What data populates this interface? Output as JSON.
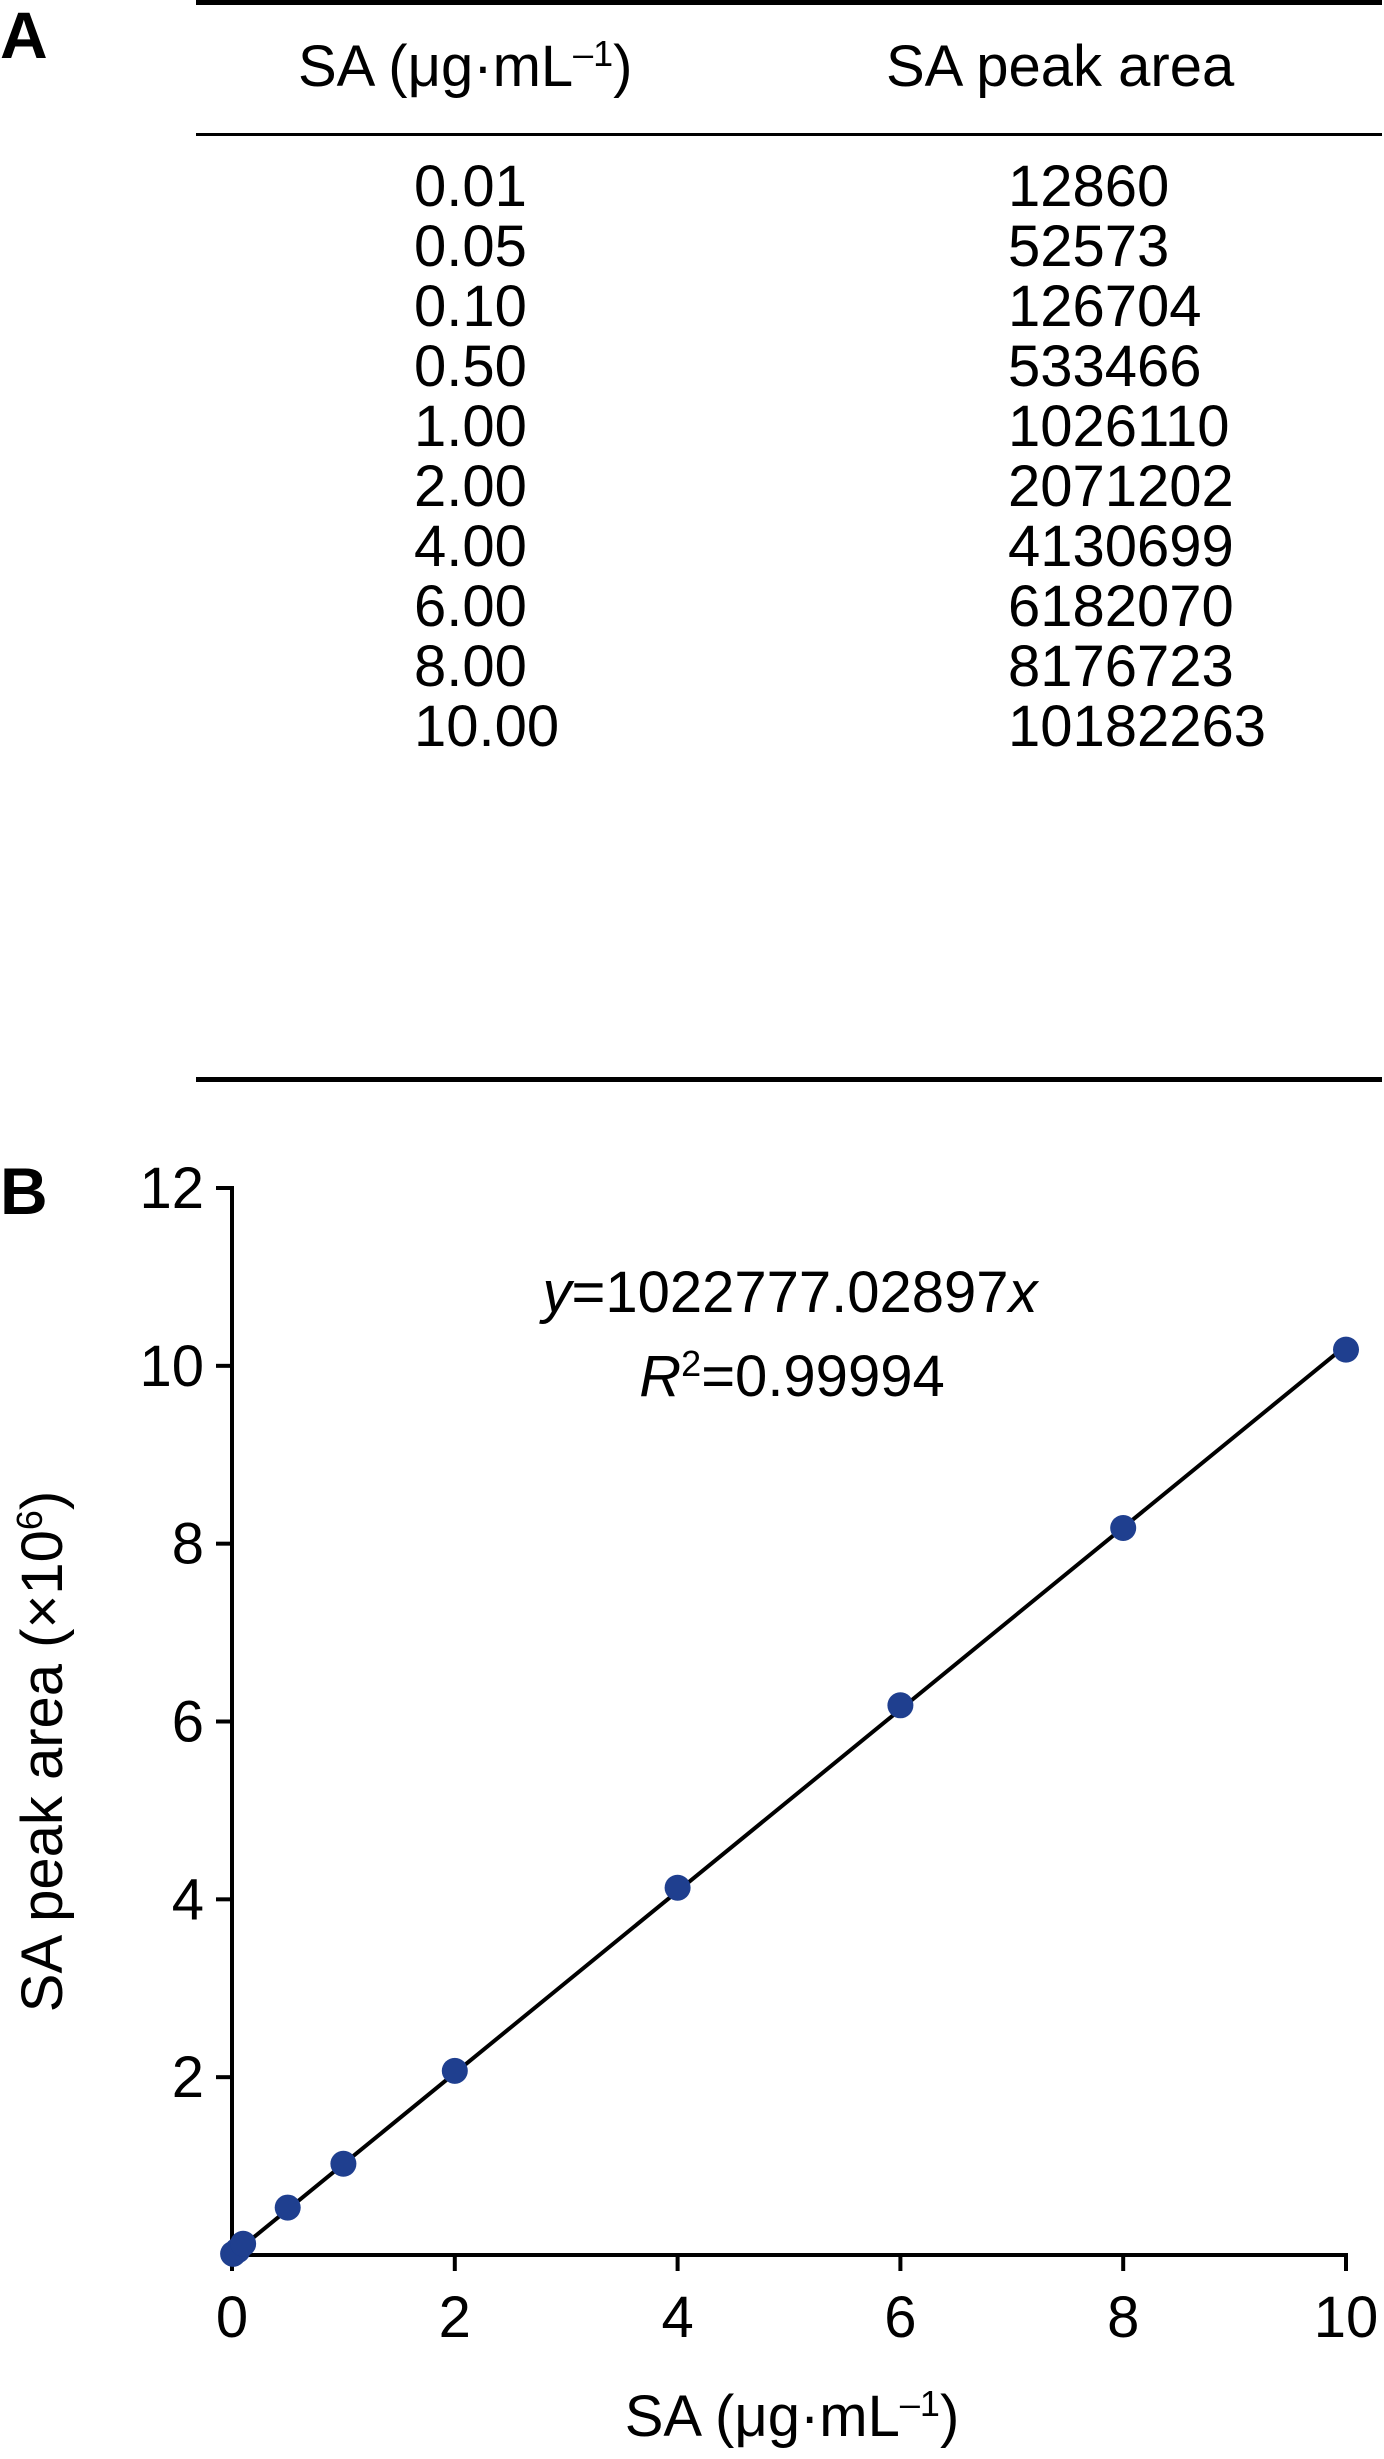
{
  "panel_labels": {
    "a": "A",
    "b": "B"
  },
  "table": {
    "headers": [
      "SA (μg·mL–1)",
      "SA peak area"
    ],
    "rows": [
      [
        "0.01",
        "12860"
      ],
      [
        "0.05",
        "52573"
      ],
      [
        "0.10",
        "126704"
      ],
      [
        "0.50",
        "533466"
      ],
      [
        "1.00",
        "1026110"
      ],
      [
        "2.00",
        "2071202"
      ],
      [
        "4.00",
        "4130699"
      ],
      [
        "6.00",
        "6182070"
      ],
      [
        "8.00",
        "8176723"
      ],
      [
        "10.00",
        "10182263"
      ]
    ]
  },
  "chart_data": {
    "type": "scatter",
    "x": [
      0.01,
      0.05,
      0.1,
      0.5,
      1.0,
      2.0,
      4.0,
      6.0,
      8.0,
      10.0
    ],
    "y": [
      0.01286,
      0.052573,
      0.126704,
      0.533466,
      1.02611,
      2.071202,
      4.130699,
      6.18207,
      8.176723,
      10.182263
    ],
    "fit": {
      "slope": 1.02277702897,
      "intercept": 0
    },
    "annotation": {
      "equation": "y=1022777.02897x",
      "r2": "R2=0.99994"
    },
    "xlabel": "SA (μg·mL–1)",
    "ylabel": "SA peak area (×106)",
    "xlim": [
      0,
      10
    ],
    "ylim": [
      0,
      12
    ],
    "xticks": [
      "0",
      "2",
      "4",
      "6",
      "8",
      "10"
    ],
    "yticks": [
      "2",
      "4",
      "6",
      "8",
      "10",
      "12"
    ],
    "grid": false,
    "marker_color": "#1f3f8f",
    "line_color": "#000000"
  }
}
